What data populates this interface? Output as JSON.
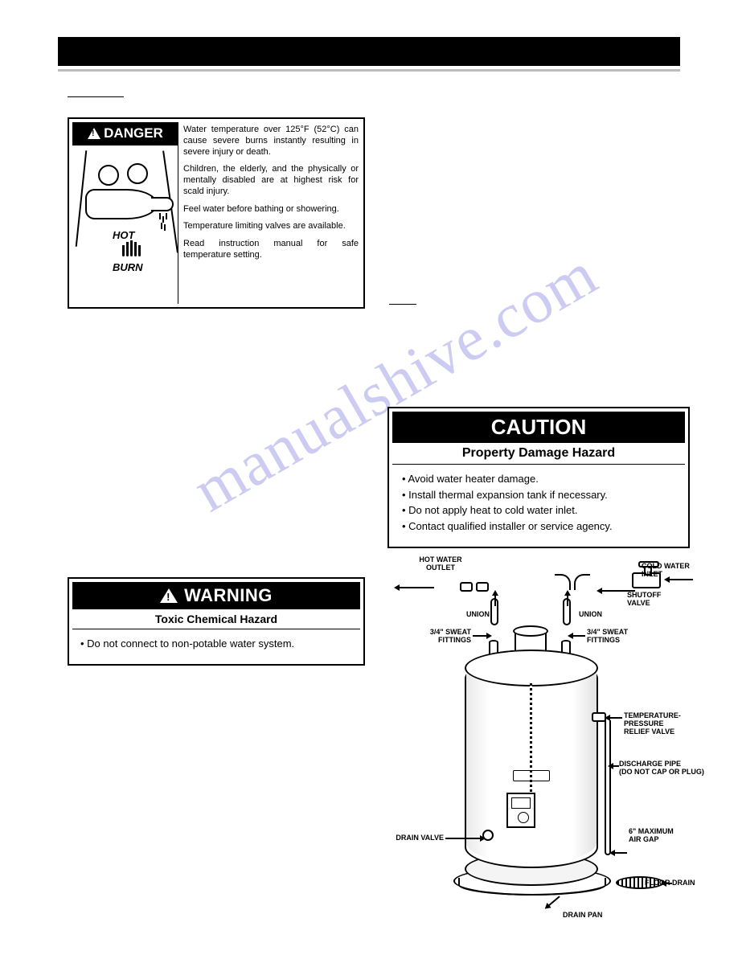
{
  "watermark": "manualshive.com",
  "danger": {
    "header": "DANGER",
    "hot_label": "HOT",
    "burn_label": "BURN",
    "paragraphs": [
      "Water temperature over 125°F (52°C) can cause severe burns instantly resulting in severe injury or death.",
      "Children, the elderly, and the physically or mentally disabled are at highest risk for scald injury.",
      "Feel water before bathing or showering.",
      "Temperature limiting valves are available.",
      "Read instruction manual for safe temperature setting."
    ]
  },
  "warning": {
    "header": "WARNING",
    "subhead": "Toxic Chemical Hazard",
    "bullets": [
      "Do not connect to non-potable water system."
    ]
  },
  "caution": {
    "header": "CAUTION",
    "subhead": "Property Damage Hazard",
    "bullets": [
      "Avoid water heater damage.",
      "Install thermal expansion tank if necessary.",
      "Do not apply heat to cold water inlet.",
      "Contact qualified installer or service agency."
    ]
  },
  "diagram_labels": {
    "hot_outlet": "HOT WATER\nOUTLET",
    "cold_inlet": "COLD WATER\nINLET",
    "shutoff": "SHUTOFF\nVALVE",
    "union_l": "UNION",
    "union_r": "UNION",
    "sweat_l": "3/4\" SWEAT\nFITTINGS",
    "sweat_r": "3/4\" SWEAT\nFITTINGS",
    "tpr": "TEMPERATURE-\nPRESSURE\nRELIEF VALVE",
    "discharge": "DISCHARGE PIPE\n(DO NOT CAP OR PLUG)",
    "air_gap": "6\" MAXIMUM\nAIR GAP",
    "floor_drain": "FLOOR DRAIN",
    "drain_pan": "DRAIN PAN",
    "drain_valve": "DRAIN VALVE"
  },
  "colors": {
    "black": "#000000",
    "white": "#ffffff",
    "watermark": "rgba(110,110,220,0.35)",
    "gray_line": "#bdbdbd"
  }
}
